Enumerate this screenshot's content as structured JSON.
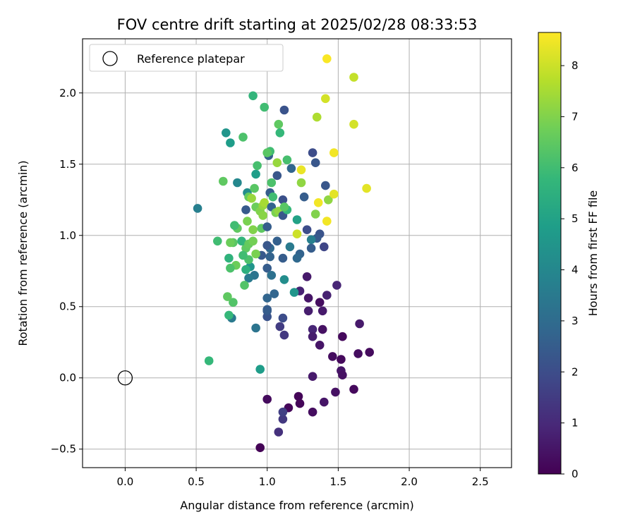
{
  "chart_data": {
    "type": "scatter",
    "title": "FOV centre drift starting at 2025/02/28 08:33:53",
    "xlabel": "Angular distance from reference (arcmin)",
    "ylabel": "Rotation from reference (arcmin)",
    "xlim": [
      -0.3,
      2.72
    ],
    "ylim": [
      -0.63,
      2.38
    ],
    "xticks": [
      0.0,
      0.5,
      1.0,
      1.5,
      2.0,
      2.5
    ],
    "xtick_labels": [
      "0.0",
      "0.5",
      "1.0",
      "1.5",
      "2.0",
      "2.5"
    ],
    "yticks": [
      -0.5,
      0.0,
      0.5,
      1.0,
      1.5,
      2.0
    ],
    "ytick_labels": [
      "−0.5",
      "0.0",
      "0.5",
      "1.0",
      "1.5",
      "2.0"
    ],
    "grid": true,
    "legend": {
      "location": "upper left",
      "entries": [
        "Reference platepar"
      ]
    },
    "reference": {
      "x": 0.0,
      "y": 0.0,
      "label": "Reference platepar",
      "marker": "hollow circle"
    },
    "colorbar": {
      "label": "Hours from first FF file",
      "colormap": "viridis",
      "range": [
        0,
        8.65
      ],
      "ticks": [
        0,
        1,
        2,
        3,
        4,
        5,
        6,
        7,
        8
      ],
      "tick_labels": [
        "0",
        "1",
        "2",
        "3",
        "4",
        "5",
        "6",
        "7",
        "8"
      ]
    },
    "series": [
      {
        "name": "",
        "points": [
          [
            0.95,
            -0.49,
            0.05
          ],
          [
            1.0,
            -0.15,
            0.25
          ],
          [
            1.15,
            -0.21,
            0.15
          ],
          [
            1.22,
            -0.13,
            0.1
          ],
          [
            1.23,
            -0.18,
            0.12
          ],
          [
            1.32,
            -0.24,
            0.3
          ],
          [
            1.4,
            -0.17,
            0.5
          ],
          [
            1.48,
            -0.1,
            0.4
          ],
          [
            1.61,
            -0.08,
            0.2
          ],
          [
            1.32,
            0.01,
            0.6
          ],
          [
            1.52,
            0.05,
            0.5
          ],
          [
            1.53,
            0.02,
            0.4
          ],
          [
            1.46,
            0.15,
            0.3
          ],
          [
            1.52,
            0.13,
            0.2
          ],
          [
            1.64,
            0.17,
            0.3
          ],
          [
            1.72,
            0.18,
            0.25
          ],
          [
            1.53,
            0.29,
            0.2
          ],
          [
            1.65,
            0.38,
            0.6
          ],
          [
            1.37,
            0.23,
            0.5
          ],
          [
            1.39,
            0.34,
            0.4
          ],
          [
            1.32,
            0.34,
            0.9
          ],
          [
            1.32,
            0.29,
            0.7
          ],
          [
            1.37,
            0.53,
            0.3
          ],
          [
            1.39,
            0.47,
            0.6
          ],
          [
            1.29,
            0.47,
            0.7
          ],
          [
            1.29,
            0.56,
            0.5
          ],
          [
            1.42,
            0.58,
            0.8
          ],
          [
            1.49,
            0.65,
            0.9
          ],
          [
            1.28,
            0.71,
            0.6
          ],
          [
            1.23,
            0.61,
            0.8
          ],
          [
            1.08,
            -0.38,
            1.2
          ],
          [
            1.11,
            -0.29,
            1.4
          ],
          [
            1.11,
            -0.24,
            1.6
          ],
          [
            1.09,
            0.36,
            1.5
          ],
          [
            1.12,
            0.3,
            1.4
          ],
          [
            1.11,
            0.42,
            2.0
          ],
          [
            1.0,
            0.43,
            2.2
          ],
          [
            1.0,
            0.47,
            2.4
          ],
          [
            1.0,
            0.48,
            2.5
          ],
          [
            1.0,
            0.56,
            2.8
          ],
          [
            1.05,
            0.59,
            2.8
          ],
          [
            0.92,
            0.35,
            3.3
          ],
          [
            0.75,
            0.42,
            3.5
          ],
          [
            1.12,
            0.69,
            4.2
          ],
          [
            1.19,
            0.6,
            4.5
          ],
          [
            0.95,
            0.06,
            4.8
          ],
          [
            0.59,
            0.12,
            5.8
          ],
          [
            0.73,
            0.44,
            5.8
          ],
          [
            0.76,
            0.53,
            6.3
          ],
          [
            0.72,
            0.57,
            6.5
          ],
          [
            0.51,
            1.19,
            3.7
          ],
          [
            0.65,
            0.96,
            6.0
          ],
          [
            0.69,
            1.38,
            6.5
          ],
          [
            0.71,
            1.72,
            4.5
          ],
          [
            0.74,
            1.65,
            4.8
          ],
          [
            0.79,
            1.37,
            4.0
          ],
          [
            0.83,
            1.69,
            6.2
          ],
          [
            0.9,
            1.98,
            5.7
          ],
          [
            0.98,
            1.9,
            6.0
          ],
          [
            1.12,
            1.88,
            2.2
          ],
          [
            1.08,
            1.78,
            6.5
          ],
          [
            1.09,
            1.72,
            5.8
          ],
          [
            1.32,
            1.58,
            2.0
          ],
          [
            1.34,
            1.51,
            2.3
          ],
          [
            1.14,
            1.53,
            6.1
          ],
          [
            1.17,
            1.47,
            2.8
          ],
          [
            1.07,
            1.42,
            2.3
          ],
          [
            1.03,
            1.37,
            6.2
          ],
          [
            1.24,
            1.46,
            8.4
          ],
          [
            1.24,
            1.37,
            7.2
          ],
          [
            1.41,
            1.35,
            2.3
          ],
          [
            1.36,
            1.23,
            8.5
          ],
          [
            1.43,
            1.25,
            7.2
          ],
          [
            1.47,
            1.29,
            8.3
          ],
          [
            1.42,
            1.1,
            8.5
          ],
          [
            1.34,
            1.15,
            7.0
          ],
          [
            1.26,
            1.27,
            2.5
          ],
          [
            1.21,
            1.11,
            5.0
          ],
          [
            1.28,
            1.04,
            2.0
          ],
          [
            1.37,
            1.01,
            2.2
          ],
          [
            1.35,
            0.98,
            2.4
          ],
          [
            1.31,
            0.97,
            3.7
          ],
          [
            1.31,
            0.91,
            2.5
          ],
          [
            1.4,
            0.92,
            1.8
          ],
          [
            1.21,
            1.01,
            8.0
          ],
          [
            1.23,
            0.87,
            2.7
          ],
          [
            1.21,
            0.84,
            2.9
          ],
          [
            1.16,
            0.92,
            3.5
          ],
          [
            1.11,
            0.84,
            2.5
          ],
          [
            1.07,
            0.96,
            2.6
          ],
          [
            1.02,
            0.91,
            2.9
          ],
          [
            1.0,
            0.77,
            2.5
          ],
          [
            1.02,
            0.85,
            2.7
          ],
          [
            0.96,
            0.86,
            2.4
          ],
          [
            0.91,
            0.72,
            3.3
          ],
          [
            0.87,
            0.7,
            3.5
          ],
          [
            0.88,
            0.78,
            4.5
          ],
          [
            0.84,
            0.65,
            6.3
          ],
          [
            0.85,
            0.76,
            5.5
          ],
          [
            0.87,
            0.83,
            6.2
          ],
          [
            0.85,
            0.91,
            6.5
          ],
          [
            0.83,
            0.86,
            6.0
          ],
          [
            0.82,
            0.96,
            5.7
          ],
          [
            0.79,
            1.05,
            6.5
          ],
          [
            0.77,
            1.07,
            6.0
          ],
          [
            0.76,
            0.95,
            6.4
          ],
          [
            0.74,
            0.95,
            6.7
          ],
          [
            0.78,
            0.79,
            6.7
          ],
          [
            0.74,
            0.77,
            6.2
          ],
          [
            0.73,
            0.84,
            5.6
          ],
          [
            0.87,
            0.94,
            6.6
          ],
          [
            0.9,
            0.96,
            6.8
          ],
          [
            0.92,
            0.87,
            6.9
          ],
          [
            0.9,
            1.04,
            7.0
          ],
          [
            0.86,
            1.1,
            6.9
          ],
          [
            0.85,
            1.18,
            2.4
          ],
          [
            0.86,
            1.3,
            4.2
          ],
          [
            0.87,
            1.27,
            6.6
          ],
          [
            0.89,
            1.26,
            7.3
          ],
          [
            0.92,
            1.2,
            6.7
          ],
          [
            0.95,
            1.17,
            7.0
          ],
          [
            0.97,
            1.21,
            7.3
          ],
          [
            0.98,
            1.23,
            7.5
          ],
          [
            0.97,
            1.14,
            7.1
          ],
          [
            0.96,
            1.05,
            6.5
          ],
          [
            1.0,
            1.06,
            2.5
          ],
          [
            1.0,
            0.93,
            2.3
          ],
          [
            1.02,
            1.3,
            2.5
          ],
          [
            1.04,
            1.27,
            6.0
          ],
          [
            1.03,
            1.2,
            2.7
          ],
          [
            1.06,
            1.16,
            6.9
          ],
          [
            1.08,
            1.17,
            7.2
          ],
          [
            1.11,
            1.14,
            2.3
          ],
          [
            1.11,
            1.25,
            2.1
          ],
          [
            1.14,
            1.18,
            5.8
          ],
          [
            1.12,
            1.2,
            6.4
          ],
          [
            1.01,
            1.56,
            2.6
          ],
          [
            1.02,
            1.59,
            6.0
          ],
          [
            1.0,
            1.58,
            6.4
          ],
          [
            1.07,
            1.51,
            7.3
          ],
          [
            0.92,
            1.43,
            4.8
          ],
          [
            0.93,
            1.49,
            6.1
          ],
          [
            0.91,
            1.33,
            6.4
          ],
          [
            1.03,
            0.72,
            3.2
          ],
          [
            1.42,
            2.24,
            8.6
          ],
          [
            1.61,
            2.11,
            7.9
          ],
          [
            1.41,
            1.96,
            8.1
          ],
          [
            1.61,
            1.78,
            8.1
          ],
          [
            1.35,
            1.83,
            7.6
          ],
          [
            1.47,
            1.58,
            8.5
          ],
          [
            1.7,
            1.33,
            8.3
          ]
        ]
      }
    ]
  }
}
